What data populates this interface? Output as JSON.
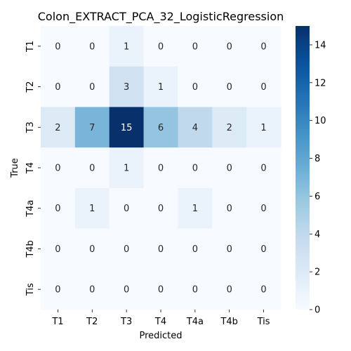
{
  "chart_data": {
    "type": "heatmap",
    "title": "Colon_EXTRACT_PCA_32_LogisticRegression",
    "xlabel": "Predicted",
    "ylabel": "True",
    "x_categories": [
      "T1",
      "T2",
      "T3",
      "T4",
      "T4a",
      "T4b",
      "Tis"
    ],
    "y_categories": [
      "T1",
      "T2",
      "T3",
      "T4",
      "T4a",
      "T4b",
      "Tis"
    ],
    "values": [
      [
        0,
        0,
        1,
        0,
        0,
        0,
        0
      ],
      [
        0,
        0,
        3,
        1,
        0,
        0,
        0
      ],
      [
        2,
        7,
        15,
        6,
        4,
        2,
        1
      ],
      [
        0,
        0,
        1,
        0,
        0,
        0,
        0
      ],
      [
        0,
        1,
        0,
        0,
        1,
        0,
        0
      ],
      [
        0,
        0,
        0,
        0,
        0,
        0,
        0
      ],
      [
        0,
        0,
        0,
        0,
        0,
        0,
        0
      ]
    ],
    "colormap": "Blues",
    "vmin": 0,
    "vmax": 15,
    "colorbar_ticks": [
      0,
      2,
      4,
      6,
      8,
      10,
      12,
      14
    ],
    "annotations": true,
    "grid": false
  }
}
